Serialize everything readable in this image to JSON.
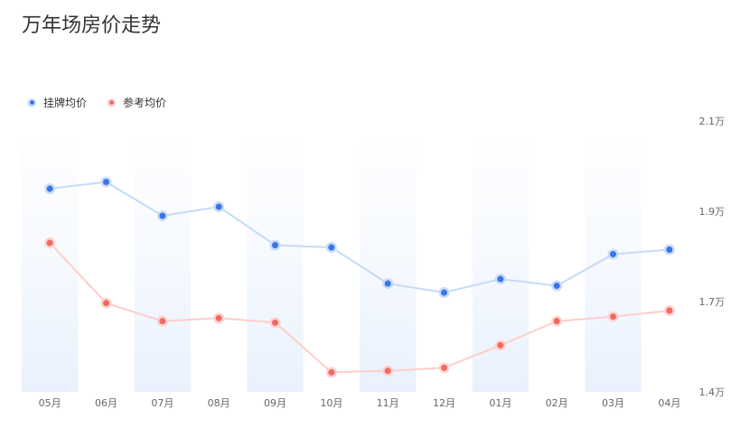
{
  "title": "万年场房价走势",
  "legend": [
    {
      "label": "挂牌均价",
      "color": "#3a75e8"
    },
    {
      "label": "参考均价",
      "color": "#ef6a63"
    }
  ],
  "chart_data": {
    "type": "line",
    "title": "万年场房价走势",
    "categories": [
      "05月",
      "06月",
      "07月",
      "08月",
      "09月",
      "10月",
      "11月",
      "12月",
      "01月",
      "02月",
      "03月",
      "04月"
    ],
    "series": [
      {
        "name": "挂牌均价",
        "color": "#3a75e8",
        "values": [
          1.95,
          1.965,
          1.89,
          1.91,
          1.825,
          1.82,
          1.74,
          1.72,
          1.75,
          1.735,
          1.805,
          1.815
        ]
      },
      {
        "name": "参考均价",
        "color": "#ef6a63",
        "values": [
          1.83,
          1.695,
          1.635,
          1.645,
          1.63,
          1.465,
          1.47,
          1.48,
          1.555,
          1.635,
          1.65,
          1.67
        ]
      }
    ],
    "y_ticks": [
      "2.1万",
      "1.9万",
      "1.7万",
      "1.4万"
    ],
    "y_scale": "piecewise",
    "legend_position": "top-left",
    "grid": false,
    "alternating_column_bands": true
  }
}
